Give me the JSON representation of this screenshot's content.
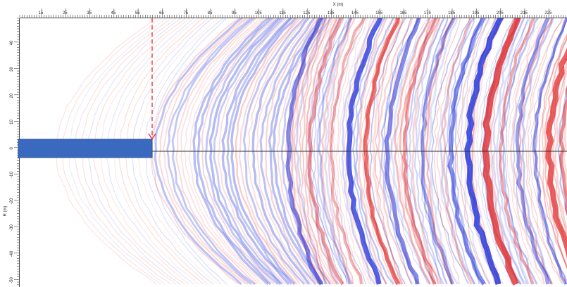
{
  "x_axis": {
    "title": "X (m)",
    "tick_labels": [
      "15",
      "25",
      "35",
      "45",
      "55",
      "65",
      "75",
      "85",
      "95",
      "105",
      "115",
      "125",
      "135",
      "145",
      "155",
      "165",
      "175",
      "185",
      "195",
      "205",
      "215",
      "225"
    ]
  },
  "y_axis": {
    "title": "R (m)",
    "tick_labels": [
      "40",
      "30",
      "20",
      "10",
      "0",
      "-10",
      "-20",
      "-30",
      "-40",
      "-50"
    ]
  },
  "colors": {
    "background": "#ffffff",
    "positive": "#e02020",
    "negative": "#1f2fd8",
    "probe_bar": "#3a6ac0",
    "marker_line": "#e03030",
    "horizon_line": "#333333"
  },
  "elements": {
    "probe_bar": "rectangular marker bar",
    "scan_line": "dashed red vertical marker",
    "horizon": "horizontal reference line"
  }
}
